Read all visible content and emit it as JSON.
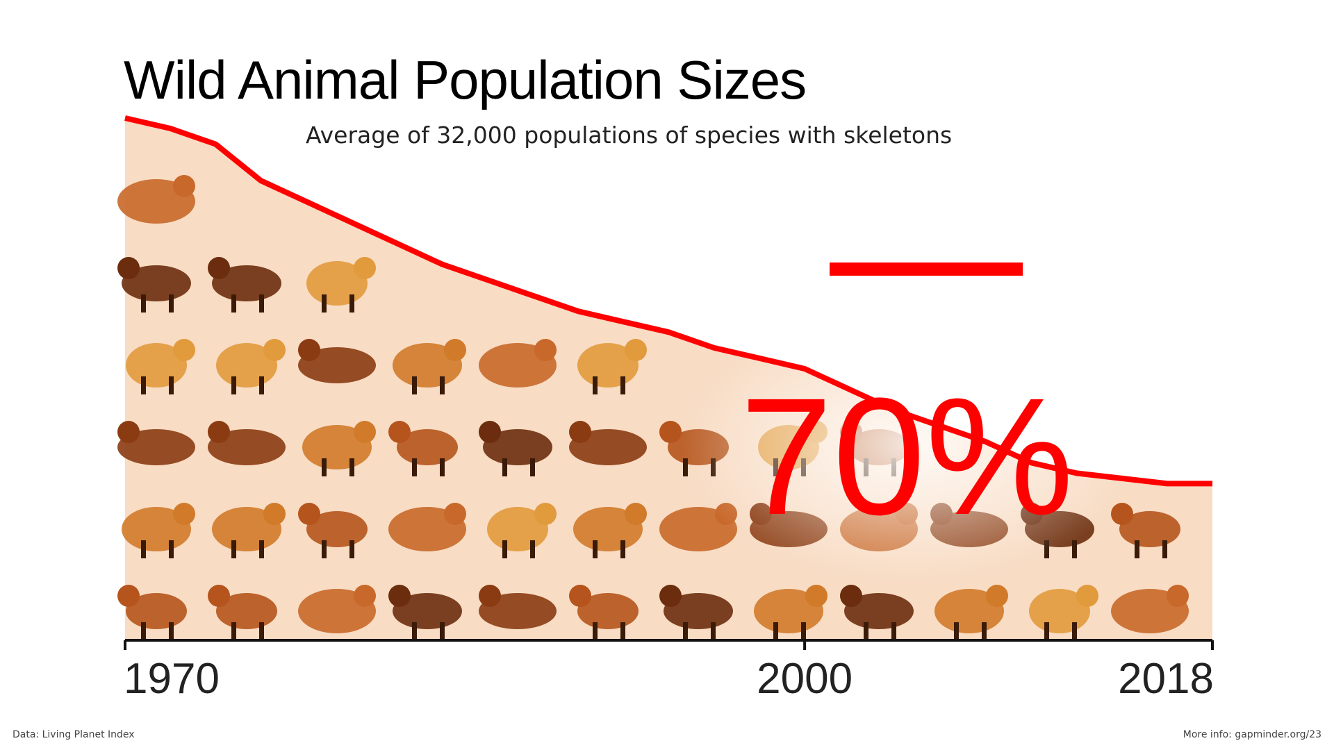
{
  "chart_data": {
    "type": "area",
    "title": "Wild Animal Population Sizes",
    "subtitle": "Average of 32,000 populations of species with skeletons",
    "x": [
      1970,
      1972,
      1974,
      1976,
      1978,
      1980,
      1982,
      1984,
      1986,
      1988,
      1990,
      1992,
      1994,
      1996,
      1998,
      2000,
      2002,
      2004,
      2006,
      2008,
      2010,
      2012,
      2014,
      2016,
      2018
    ],
    "values": [
      100,
      98,
      95,
      88,
      84,
      80,
      76,
      72,
      69,
      66,
      63,
      61,
      59,
      56,
      54,
      52,
      48,
      44,
      41,
      38,
      34,
      32,
      31,
      30,
      30
    ],
    "xticks": [
      1970,
      2000,
      2018
    ],
    "xlim": [
      1970,
      2018
    ],
    "ylim": [
      0,
      100
    ],
    "annotation": {
      "sign": "−",
      "text": "70%"
    },
    "colors": {
      "line": "#ff0000",
      "fill": "#f8dcc4",
      "axis": "#111111",
      "annotation": "#ff0000"
    }
  },
  "footer": {
    "source": "Data: Living Planet Index",
    "more_info": "More info: gapminder.org/23"
  }
}
